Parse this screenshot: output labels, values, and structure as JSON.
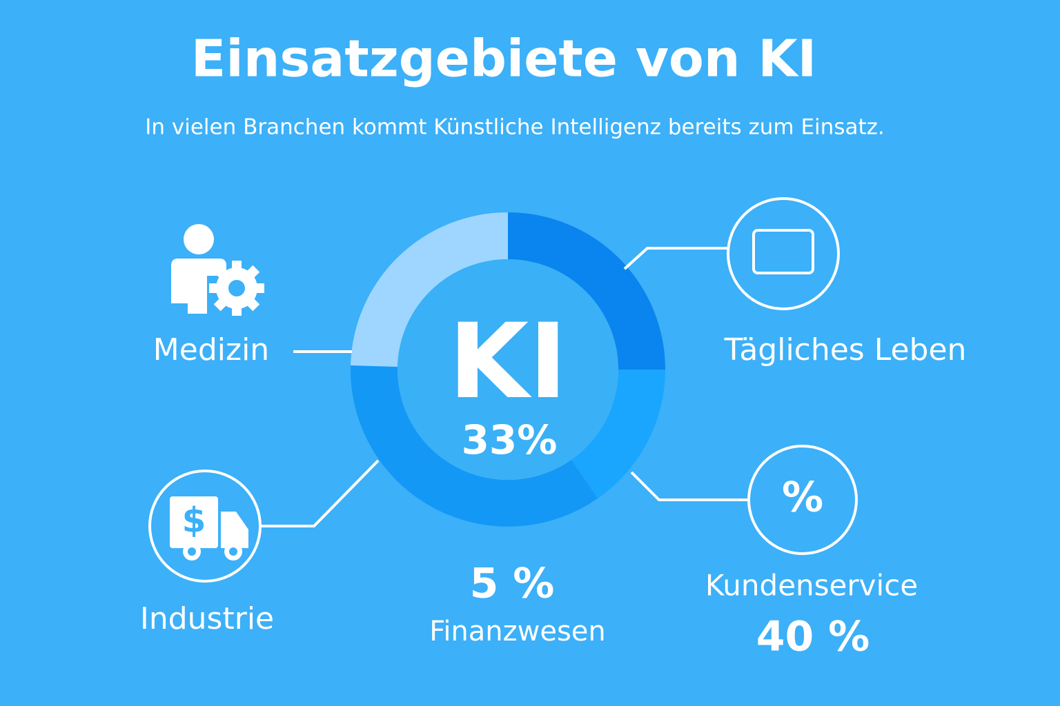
{
  "header": {
    "title": "Einsatzgebiete von KI",
    "subtitle": "In vielen Branchen kommt Künstliche Intelligenz bereits zum Einsatz."
  },
  "center": {
    "label": "KI",
    "value_text": "33%"
  },
  "areas": [
    {
      "label": "Medizin"
    },
    {
      "label": "Tägliches Leben"
    },
    {
      "label": "Industrie"
    },
    {
      "label": "Finanzwesen",
      "value_text": "5 %"
    },
    {
      "label": "Kundenservice",
      "value_text": "40 %",
      "icon_text": "%"
    }
  ]
}
